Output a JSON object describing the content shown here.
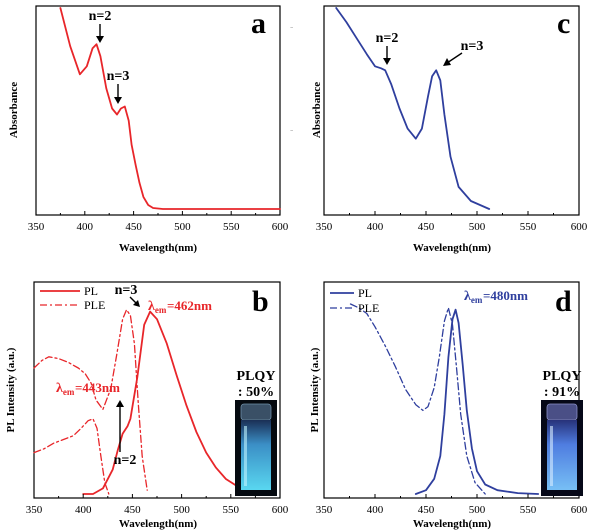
{
  "chart_data": [
    {
      "type": "line",
      "panel_letter": "a",
      "xlabel": "Wavelength(nm)",
      "ylabel": "Absorbance",
      "xlim": [
        350,
        600
      ],
      "ylim": [
        0,
        1
      ],
      "xticks": [
        "350",
        "400",
        "450",
        "500",
        "550",
        "600"
      ],
      "color": "#e8262a",
      "series": [
        {
          "x": [
            375,
            385,
            395,
            402,
            408,
            412,
            416,
            422,
            428,
            433,
            437,
            441,
            445,
            448,
            452,
            456,
            460,
            465,
            470,
            480,
            500,
            550,
            600
          ],
          "y": [
            1.0,
            0.81,
            0.67,
            0.71,
            0.8,
            0.82,
            0.76,
            0.6,
            0.5,
            0.47,
            0.5,
            0.51,
            0.44,
            0.32,
            0.22,
            0.13,
            0.06,
            0.02,
            0.005,
            0.0,
            0.0,
            0.0,
            0.0
          ]
        }
      ],
      "annotations": [
        {
          "text": "n=2",
          "x": 412,
          "y": 0.84
        },
        {
          "text": "n=3",
          "x": 441,
          "y": 0.53
        }
      ]
    },
    {
      "type": "line",
      "panel_letter": "c",
      "xlabel": "Wavelength(nm)",
      "ylabel": "Absorbance",
      "xlim": [
        350,
        600
      ],
      "ylim": [
        0,
        1
      ],
      "xticks": [
        "350",
        "400",
        "450",
        "500",
        "550",
        "600"
      ],
      "color": "#2f3f9e",
      "series": [
        {
          "x": [
            362,
            372,
            382,
            392,
            400,
            406,
            410,
            416,
            424,
            432,
            440,
            446,
            452,
            456,
            460,
            464,
            468,
            474,
            482,
            494,
            512
          ],
          "y": [
            1.0,
            0.93,
            0.85,
            0.77,
            0.71,
            0.7,
            0.69,
            0.62,
            0.5,
            0.4,
            0.35,
            0.4,
            0.56,
            0.66,
            0.69,
            0.64,
            0.47,
            0.26,
            0.11,
            0.04,
            0.0
          ]
        }
      ],
      "annotations": [
        {
          "text": "n=2",
          "x": 407,
          "y": 0.71
        },
        {
          "text": "n=3",
          "x": 460,
          "y": 0.7
        }
      ]
    },
    {
      "type": "line",
      "panel_letter": "b",
      "xlabel": "Wavelength(nm)",
      "ylabel": "PL Intensity (a.u.)",
      "xlim": [
        350,
        600
      ],
      "ylim": [
        0,
        1
      ],
      "xticks": [
        "350",
        "400",
        "450",
        "500",
        "550",
        "600"
      ],
      "color": "#e8262a",
      "series": [
        {
          "name": "PL",
          "style": "solid",
          "x": [
            400,
            410,
            420,
            430,
            435,
            440,
            445,
            448,
            455,
            462,
            468,
            475,
            485,
            495,
            505,
            515,
            525,
            535,
            545,
            560,
            575,
            590
          ],
          "y": [
            0.0,
            0.0,
            0.03,
            0.13,
            0.23,
            0.32,
            0.36,
            0.4,
            0.62,
            0.9,
            0.97,
            0.93,
            0.8,
            0.63,
            0.47,
            0.33,
            0.22,
            0.14,
            0.08,
            0.03,
            0.01,
            0.0
          ]
        },
        {
          "name": "PLE",
          "style": "dashdot",
          "x": [
            350,
            358,
            365,
            375,
            385,
            395,
            402,
            408,
            413,
            420,
            428,
            434,
            440,
            444,
            448,
            452,
            456,
            460,
            465
          ],
          "y": [
            0.67,
            0.71,
            0.73,
            0.72,
            0.7,
            0.67,
            0.64,
            0.59,
            0.5,
            0.45,
            0.56,
            0.74,
            0.93,
            0.98,
            0.95,
            0.8,
            0.48,
            0.2,
            0.02
          ]
        },
        {
          "name": "",
          "style": "dashdot",
          "x": [
            350,
            360,
            370,
            380,
            390,
            398,
            405,
            410,
            414,
            418,
            422,
            426
          ],
          "y": [
            0.22,
            0.24,
            0.27,
            0.29,
            0.31,
            0.35,
            0.39,
            0.4,
            0.35,
            0.2,
            0.06,
            0.0
          ]
        }
      ],
      "annotations": [
        {
          "text": "n=3",
          "x": 452,
          "y": 1.07
        },
        {
          "text": "n=2",
          "x": 445,
          "y": 0.17
        },
        {
          "text": "=462nm",
          "x": 478,
          "y": 0.93
        },
        {
          "text": "=443nm",
          "x": 393,
          "y": 0.48
        }
      ],
      "inset": {
        "label": "PLQY",
        "value": ": 50%"
      }
    },
    {
      "type": "line",
      "panel_letter": "d",
      "xlabel": "Wavelength(nm)",
      "ylabel": "PL Intensity (a.u.)",
      "xlim": [
        350,
        600
      ],
      "ylim": [
        0,
        1
      ],
      "xticks": [
        "350",
        "400",
        "450",
        "500",
        "550",
        "600"
      ],
      "color": "#2f3f9e",
      "series": [
        {
          "name": "PL",
          "style": "solid",
          "x": [
            440,
            450,
            458,
            464,
            468,
            472,
            476,
            479,
            482,
            486,
            490,
            495,
            500,
            508,
            520,
            540,
            560
          ],
          "y": [
            0.0,
            0.02,
            0.08,
            0.2,
            0.42,
            0.72,
            0.92,
            0.97,
            0.9,
            0.68,
            0.44,
            0.24,
            0.12,
            0.05,
            0.02,
            0.005,
            0.0
          ]
        },
        {
          "name": "PLE",
          "style": "dashdot",
          "x": [
            376,
            384,
            392,
            400,
            410,
            420,
            430,
            440,
            447,
            452,
            458,
            463,
            468,
            472,
            476,
            480,
            484,
            490,
            498,
            508
          ],
          "y": [
            1.0,
            0.98,
            0.95,
            0.88,
            0.78,
            0.67,
            0.55,
            0.47,
            0.44,
            0.46,
            0.56,
            0.72,
            0.91,
            0.98,
            0.89,
            0.66,
            0.42,
            0.2,
            0.06,
            0.0
          ]
        }
      ],
      "annotations": [
        {
          "text": "=480nm",
          "x": 476,
          "y": 0.98
        }
      ],
      "inset": {
        "label": "PLQY",
        "value": ": 91%"
      }
    }
  ]
}
